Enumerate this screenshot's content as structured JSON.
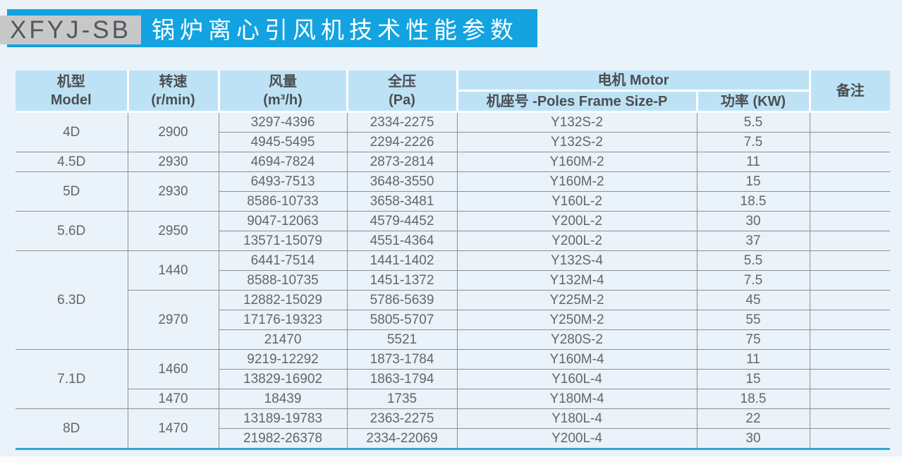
{
  "page": {
    "bg_color": "#eaf2fa",
    "accent_blue": "#13a3e1",
    "header_bg": "#bde2f6",
    "border_gray": "#8f9193",
    "model_code": "XFYJ-SB",
    "title": "锅炉离心引风机技术性能参数"
  },
  "table": {
    "headers": {
      "model": "机型",
      "model_en": "Model",
      "speed": "转速",
      "speed_unit": "(r/min)",
      "flow": "风量",
      "flow_unit": "(m³/h)",
      "pressure": "全压",
      "pressure_unit": "(Pa)",
      "motor": "电机 Motor",
      "frame": "机座号 -Poles Frame Size-P",
      "power": "功率 (KW)",
      "remark": "备注"
    },
    "rows": [
      {
        "model": {
          "t": "4D",
          "span": 2
        },
        "speed": {
          "t": "2900",
          "span": 2
        },
        "flow": "3297-4396",
        "pressure": "2334-2275",
        "frame": "Y132S-2",
        "power": "5.5",
        "remark": ""
      },
      {
        "flow": "4945-5495",
        "pressure": "2294-2226",
        "frame": "Y132S-2",
        "power": "7.5",
        "remark": ""
      },
      {
        "model": {
          "t": "4.5D",
          "span": 1
        },
        "speed": {
          "t": "2930",
          "span": 1
        },
        "flow": "4694-7824",
        "pressure": "2873-2814",
        "frame": "Y160M-2",
        "power": "11",
        "remark": ""
      },
      {
        "model": {
          "t": "5D",
          "span": 2
        },
        "speed": {
          "t": "2930",
          "span": 2
        },
        "flow": "6493-7513",
        "pressure": "3648-3550",
        "frame": "Y160M-2",
        "power": "15",
        "remark": ""
      },
      {
        "flow": "8586-10733",
        "pressure": "3658-3481",
        "frame": "Y160L-2",
        "power": "18.5",
        "remark": ""
      },
      {
        "model": {
          "t": "5.6D",
          "span": 2
        },
        "speed": {
          "t": "2950",
          "span": 2
        },
        "flow": "9047-12063",
        "pressure": "4579-4452",
        "frame": "Y200L-2",
        "power": "30",
        "remark": ""
      },
      {
        "flow": "13571-15079",
        "pressure": "4551-4364",
        "frame": "Y200L-2",
        "power": "37",
        "remark": ""
      },
      {
        "model": {
          "t": "6.3D",
          "span": 5
        },
        "speed": {
          "t": "1440",
          "span": 2
        },
        "flow": "6441-7514",
        "pressure": "1441-1402",
        "frame": "Y132S-4",
        "power": "5.5",
        "remark": ""
      },
      {
        "flow": "8588-10735",
        "pressure": "1451-1372",
        "frame": "Y132M-4",
        "power": "7.5",
        "remark": ""
      },
      {
        "speed": {
          "t": "2970",
          "span": 3
        },
        "flow": "12882-15029",
        "pressure": "5786-5639",
        "frame": "Y225M-2",
        "power": "45",
        "remark": ""
      },
      {
        "flow": "17176-19323",
        "pressure": "5805-5707",
        "frame": "Y250M-2",
        "power": "55",
        "remark": ""
      },
      {
        "flow": "21470",
        "pressure": "5521",
        "frame": "Y280S-2",
        "power": "75",
        "remark": ""
      },
      {
        "model": {
          "t": "7.1D",
          "span": 3
        },
        "speed": {
          "t": "1460",
          "span": 2
        },
        "flow": "9219-12292",
        "pressure": "1873-1784",
        "frame": "Y160M-4",
        "power": "11",
        "remark": ""
      },
      {
        "flow": "13829-16902",
        "pressure": "1863-1794",
        "frame": "Y160L-4",
        "power": "15",
        "remark": ""
      },
      {
        "speed": {
          "t": "1470",
          "span": 1
        },
        "flow": "18439",
        "pressure": "1735",
        "frame": "Y180M-4",
        "power": "18.5",
        "remark": ""
      },
      {
        "model": {
          "t": "8D",
          "span": 2
        },
        "speed": {
          "t": "1470",
          "span": 2
        },
        "flow": "13189-19783",
        "pressure": "2363-2275",
        "frame": "Y180L-4",
        "power": "22",
        "remark": ""
      },
      {
        "flow": "21982-26378",
        "pressure": "2334-22069",
        "frame": "Y200L-4",
        "power": "30",
        "remark": ""
      }
    ]
  }
}
